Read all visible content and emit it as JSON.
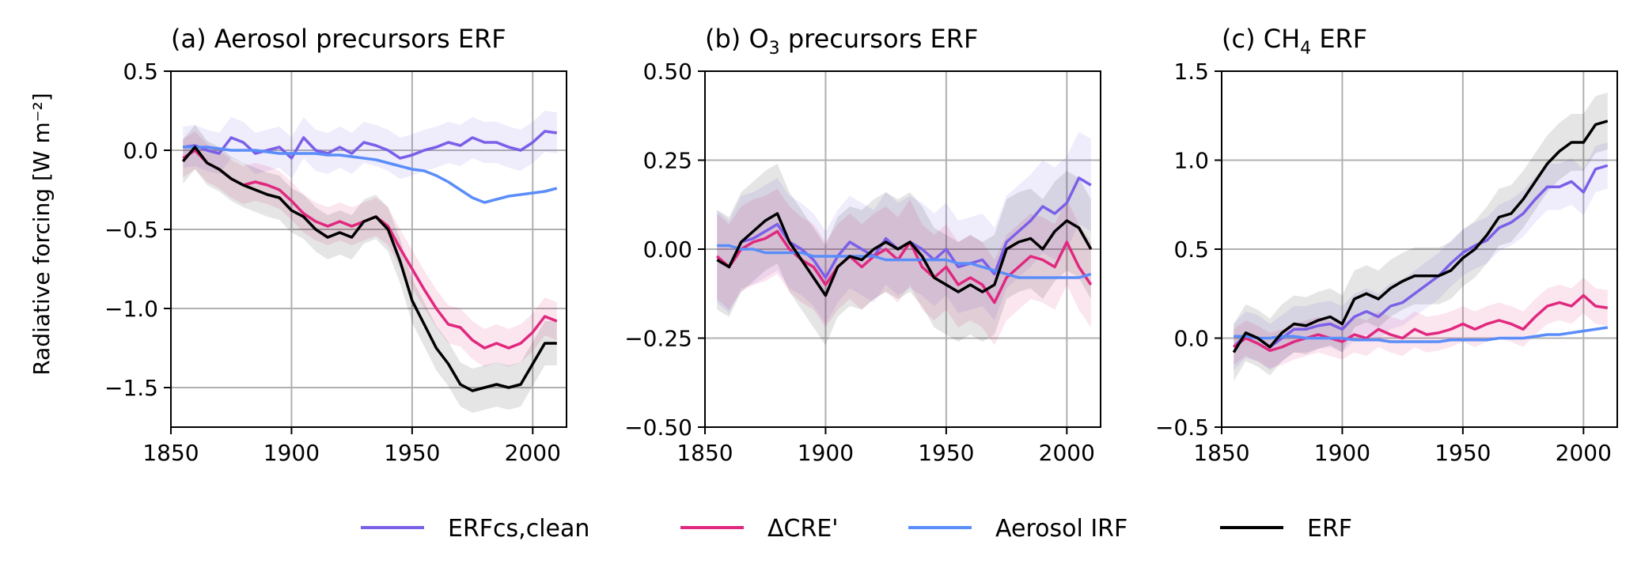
{
  "legend_position": "bottom-center",
  "chart_data": [
    {
      "type": "line",
      "title_main": "(a) Aerosol precursors ERF",
      "title_sub": "",
      "title_tail": "",
      "ylabel": "Radiative forcing [W m⁻²]",
      "xlim": [
        1850,
        2014
      ],
      "ylim": [
        -1.75,
        0.5
      ],
      "xticks": [
        "1850",
        "1900",
        "1950",
        "2000"
      ],
      "xtick_values": [
        1850,
        1900,
        1950,
        2000
      ],
      "yticks": [
        "0.5",
        "0.0",
        "−0.5",
        "−1.0",
        "−1.5"
      ],
      "ytick_values": [
        0.5,
        0.0,
        -0.5,
        -1.0,
        -1.5
      ],
      "grid": true,
      "series": [
        {
          "name": "ERFcs,clean",
          "color": "#7b5fe8",
          "band": 0.13,
          "x": [
            1855,
            1860,
            1865,
            1870,
            1875,
            1880,
            1885,
            1890,
            1895,
            1900,
            1905,
            1910,
            1915,
            1920,
            1925,
            1930,
            1935,
            1940,
            1945,
            1950,
            1955,
            1960,
            1965,
            1970,
            1975,
            1980,
            1985,
            1990,
            1995,
            2000,
            2005,
            2010
          ],
          "y": [
            0.02,
            0.03,
            0.0,
            -0.02,
            0.08,
            0.05,
            -0.02,
            0.0,
            0.02,
            -0.05,
            0.08,
            0.0,
            -0.02,
            0.02,
            -0.02,
            0.05,
            0.03,
            0.0,
            -0.05,
            -0.03,
            0.0,
            0.02,
            0.05,
            0.03,
            0.08,
            0.05,
            0.05,
            0.02,
            0.0,
            0.05,
            0.12,
            0.11
          ]
        },
        {
          "name": "ΔCRE'",
          "color": "#e0287e",
          "band": 0.12,
          "x": [
            1855,
            1860,
            1865,
            1870,
            1875,
            1880,
            1885,
            1890,
            1895,
            1900,
            1905,
            1910,
            1915,
            1920,
            1925,
            1930,
            1935,
            1940,
            1945,
            1950,
            1955,
            1960,
            1965,
            1970,
            1975,
            1980,
            1985,
            1990,
            1995,
            2000,
            2005,
            2010
          ],
          "y": [
            -0.05,
            0.0,
            -0.08,
            -0.12,
            -0.18,
            -0.22,
            -0.2,
            -0.22,
            -0.25,
            -0.32,
            -0.4,
            -0.45,
            -0.48,
            -0.45,
            -0.48,
            -0.45,
            -0.42,
            -0.48,
            -0.62,
            -0.75,
            -0.88,
            -1.0,
            -1.1,
            -1.12,
            -1.2,
            -1.25,
            -1.22,
            -1.25,
            -1.22,
            -1.15,
            -1.05,
            -1.08
          ]
        },
        {
          "name": "Aerosol IRF",
          "color": "#5a8dfa",
          "band": 0.0,
          "x": [
            1855,
            1860,
            1865,
            1870,
            1875,
            1880,
            1885,
            1890,
            1895,
            1900,
            1905,
            1910,
            1915,
            1920,
            1925,
            1930,
            1935,
            1940,
            1945,
            1950,
            1955,
            1960,
            1965,
            1970,
            1975,
            1980,
            1985,
            1990,
            1995,
            2000,
            2005,
            2010
          ],
          "y": [
            0.02,
            0.02,
            0.02,
            0.01,
            0.0,
            0.0,
            0.0,
            -0.01,
            -0.02,
            -0.02,
            -0.02,
            -0.02,
            -0.03,
            -0.03,
            -0.04,
            -0.05,
            -0.06,
            -0.08,
            -0.1,
            -0.12,
            -0.13,
            -0.16,
            -0.2,
            -0.25,
            -0.3,
            -0.33,
            -0.31,
            -0.29,
            -0.28,
            -0.27,
            -0.26,
            -0.24
          ]
        },
        {
          "name": "ERF",
          "color": "#000000",
          "band": 0.14,
          "x": [
            1855,
            1860,
            1865,
            1870,
            1875,
            1880,
            1885,
            1890,
            1895,
            1900,
            1905,
            1910,
            1915,
            1920,
            1925,
            1930,
            1935,
            1940,
            1945,
            1950,
            1955,
            1960,
            1965,
            1970,
            1975,
            1980,
            1985,
            1990,
            1995,
            2000,
            2005,
            2010
          ],
          "y": [
            -0.07,
            0.02,
            -0.08,
            -0.12,
            -0.18,
            -0.22,
            -0.25,
            -0.28,
            -0.3,
            -0.38,
            -0.42,
            -0.5,
            -0.55,
            -0.52,
            -0.55,
            -0.45,
            -0.42,
            -0.5,
            -0.7,
            -0.95,
            -1.1,
            -1.25,
            -1.35,
            -1.48,
            -1.52,
            -1.5,
            -1.48,
            -1.5,
            -1.48,
            -1.35,
            -1.22,
            -1.22
          ]
        }
      ]
    },
    {
      "type": "line",
      "title_main": "(b) O",
      "title_sub": "3",
      "title_tail": " precursors ERF",
      "ylabel": "",
      "xlim": [
        1850,
        2014
      ],
      "ylim": [
        -0.5,
        0.5
      ],
      "xticks": [
        "1850",
        "1900",
        "1950",
        "2000"
      ],
      "xtick_values": [
        1850,
        1900,
        1950,
        2000
      ],
      "yticks": [
        "0.50",
        "0.25",
        "0.00",
        "−0.25",
        "−0.50"
      ],
      "ytick_values": [
        0.5,
        0.25,
        0.0,
        -0.25,
        -0.5
      ],
      "grid": true,
      "series": [
        {
          "name": "ERFcs,clean",
          "color": "#7b5fe8",
          "band": 0.13,
          "x": [
            1855,
            1860,
            1865,
            1870,
            1875,
            1880,
            1885,
            1890,
            1895,
            1900,
            1905,
            1910,
            1915,
            1920,
            1925,
            1930,
            1935,
            1940,
            1945,
            1950,
            1955,
            1960,
            1965,
            1970,
            1975,
            1980,
            1985,
            1990,
            1995,
            2000,
            2005,
            2010
          ],
          "y": [
            -0.02,
            -0.05,
            0.02,
            0.03,
            0.05,
            0.07,
            0.02,
            0.0,
            -0.03,
            -0.08,
            -0.02,
            0.02,
            0.0,
            -0.02,
            0.03,
            0.0,
            0.02,
            0.0,
            -0.03,
            0.0,
            -0.05,
            -0.04,
            -0.03,
            -0.07,
            0.02,
            0.05,
            0.08,
            0.12,
            0.1,
            0.13,
            0.2,
            0.18
          ]
        },
        {
          "name": "ΔCRE'",
          "color": "#e0287e",
          "band": 0.12,
          "x": [
            1855,
            1860,
            1865,
            1870,
            1875,
            1880,
            1885,
            1890,
            1895,
            1900,
            1905,
            1910,
            1915,
            1920,
            1925,
            1930,
            1935,
            1940,
            1945,
            1950,
            1955,
            1960,
            1965,
            1970,
            1975,
            1980,
            1985,
            1990,
            1995,
            2000,
            2005,
            2010
          ],
          "y": [
            -0.02,
            -0.05,
            0.0,
            0.02,
            0.03,
            0.05,
            0.0,
            -0.03,
            -0.05,
            -0.1,
            -0.05,
            -0.02,
            -0.05,
            -0.02,
            0.0,
            -0.03,
            0.02,
            -0.05,
            -0.08,
            -0.05,
            -0.1,
            -0.08,
            -0.1,
            -0.15,
            -0.08,
            -0.05,
            -0.02,
            -0.03,
            -0.05,
            0.02,
            -0.05,
            -0.1
          ]
        },
        {
          "name": "Aerosol IRF",
          "color": "#5a8dfa",
          "band": 0.0,
          "x": [
            1855,
            1860,
            1865,
            1870,
            1875,
            1880,
            1885,
            1890,
            1895,
            1900,
            1905,
            1910,
            1915,
            1920,
            1925,
            1930,
            1935,
            1940,
            1945,
            1950,
            1955,
            1960,
            1965,
            1970,
            1975,
            1980,
            1985,
            1990,
            1995,
            2000,
            2005,
            2010
          ],
          "y": [
            0.01,
            0.01,
            0.0,
            0.0,
            -0.01,
            -0.01,
            -0.01,
            -0.01,
            -0.02,
            -0.02,
            -0.02,
            -0.02,
            -0.02,
            -0.02,
            -0.03,
            -0.03,
            -0.03,
            -0.03,
            -0.03,
            -0.03,
            -0.04,
            -0.04,
            -0.05,
            -0.06,
            -0.07,
            -0.08,
            -0.08,
            -0.08,
            -0.08,
            -0.08,
            -0.08,
            -0.07
          ]
        },
        {
          "name": "ERF",
          "color": "#000000",
          "band": 0.14,
          "x": [
            1855,
            1860,
            1865,
            1870,
            1875,
            1880,
            1885,
            1890,
            1895,
            1900,
            1905,
            1910,
            1915,
            1920,
            1925,
            1930,
            1935,
            1940,
            1945,
            1950,
            1955,
            1960,
            1965,
            1970,
            1975,
            1980,
            1985,
            1990,
            1995,
            2000,
            2005,
            2010
          ],
          "y": [
            -0.03,
            -0.05,
            0.02,
            0.05,
            0.08,
            0.1,
            0.02,
            -0.03,
            -0.08,
            -0.13,
            -0.05,
            -0.02,
            -0.03,
            0.0,
            0.02,
            0.0,
            0.02,
            -0.02,
            -0.08,
            -0.1,
            -0.12,
            -0.1,
            -0.12,
            -0.1,
            0.0,
            0.02,
            0.03,
            0.0,
            0.05,
            0.08,
            0.06,
            0.0
          ]
        }
      ]
    },
    {
      "type": "line",
      "title_main": "(c) CH",
      "title_sub": "4",
      "title_tail": " ERF",
      "ylabel": "",
      "xlim": [
        1850,
        2014
      ],
      "ylim": [
        -0.5,
        1.5
      ],
      "xticks": [
        "1850",
        "1900",
        "1950",
        "2000"
      ],
      "xtick_values": [
        1850,
        1900,
        1950,
        2000
      ],
      "yticks": [
        "1.5",
        "1.0",
        "0.5",
        "0.0",
        "−0.5"
      ],
      "ytick_values": [
        1.5,
        1.0,
        0.5,
        0.0,
        -0.5
      ],
      "grid": true,
      "series": [
        {
          "name": "ERFcs,clean",
          "color": "#7b5fe8",
          "band": 0.13,
          "x": [
            1855,
            1860,
            1865,
            1870,
            1875,
            1880,
            1885,
            1890,
            1895,
            1900,
            1905,
            1910,
            1915,
            1920,
            1925,
            1930,
            1935,
            1940,
            1945,
            1950,
            1955,
            1960,
            1965,
            1970,
            1975,
            1980,
            1985,
            1990,
            1995,
            2000,
            2005,
            2010
          ],
          "y": [
            -0.05,
            0.02,
            0.0,
            -0.05,
            0.0,
            0.05,
            0.05,
            0.07,
            0.08,
            0.05,
            0.12,
            0.15,
            0.12,
            0.18,
            0.2,
            0.25,
            0.3,
            0.35,
            0.42,
            0.48,
            0.52,
            0.55,
            0.62,
            0.65,
            0.7,
            0.78,
            0.85,
            0.85,
            0.88,
            0.82,
            0.95,
            0.97
          ]
        },
        {
          "name": "ΔCRE'",
          "color": "#e0287e",
          "band": 0.1,
          "x": [
            1855,
            1860,
            1865,
            1870,
            1875,
            1880,
            1885,
            1890,
            1895,
            1900,
            1905,
            1910,
            1915,
            1920,
            1925,
            1930,
            1935,
            1940,
            1945,
            1950,
            1955,
            1960,
            1965,
            1970,
            1975,
            1980,
            1985,
            1990,
            1995,
            2000,
            2005,
            2010
          ],
          "y": [
            -0.05,
            0.0,
            -0.03,
            -0.07,
            -0.05,
            -0.02,
            0.0,
            0.02,
            0.0,
            -0.02,
            0.02,
            0.0,
            0.05,
            0.02,
            0.0,
            0.05,
            0.02,
            0.03,
            0.05,
            0.08,
            0.05,
            0.08,
            0.1,
            0.08,
            0.05,
            0.12,
            0.18,
            0.2,
            0.18,
            0.24,
            0.18,
            0.17
          ]
        },
        {
          "name": "Aerosol IRF",
          "color": "#5a8dfa",
          "band": 0.0,
          "x": [
            1855,
            1860,
            1865,
            1870,
            1875,
            1880,
            1885,
            1890,
            1895,
            1900,
            1905,
            1910,
            1915,
            1920,
            1925,
            1930,
            1935,
            1940,
            1945,
            1950,
            1955,
            1960,
            1965,
            1970,
            1975,
            1980,
            1985,
            1990,
            1995,
            2000,
            2005,
            2010
          ],
          "y": [
            0.01,
            0.01,
            0.0,
            0.0,
            0.01,
            0.01,
            0.0,
            0.0,
            0.0,
            0.0,
            -0.01,
            -0.01,
            -0.01,
            -0.02,
            -0.02,
            -0.02,
            -0.02,
            -0.02,
            -0.01,
            -0.01,
            -0.01,
            -0.01,
            0.0,
            0.0,
            0.0,
            0.01,
            0.02,
            0.02,
            0.03,
            0.04,
            0.05,
            0.06
          ]
        },
        {
          "name": "ERF",
          "color": "#000000",
          "band": 0.16,
          "x": [
            1855,
            1860,
            1865,
            1870,
            1875,
            1880,
            1885,
            1890,
            1895,
            1900,
            1905,
            1910,
            1915,
            1920,
            1925,
            1930,
            1935,
            1940,
            1945,
            1950,
            1955,
            1960,
            1965,
            1970,
            1975,
            1980,
            1985,
            1990,
            1995,
            2000,
            2005,
            2010
          ],
          "y": [
            -0.08,
            0.03,
            0.0,
            -0.05,
            0.03,
            0.08,
            0.07,
            0.1,
            0.12,
            0.08,
            0.22,
            0.25,
            0.22,
            0.28,
            0.32,
            0.35,
            0.35,
            0.35,
            0.38,
            0.45,
            0.5,
            0.58,
            0.68,
            0.7,
            0.78,
            0.88,
            0.98,
            1.05,
            1.1,
            1.1,
            1.2,
            1.22
          ]
        }
      ]
    }
  ]
}
